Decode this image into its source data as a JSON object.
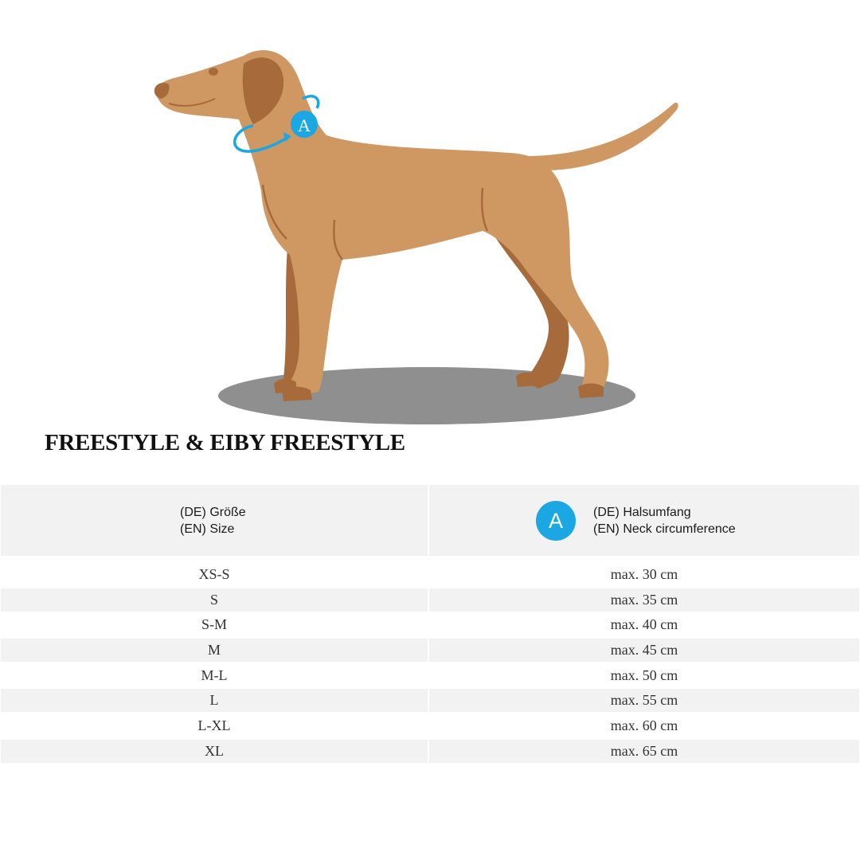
{
  "illustration": {
    "marker_letter": "A",
    "colors": {
      "dog_body": "#cf9862",
      "dog_shade": "#a76a3a",
      "ear": "#a76a3a",
      "shadow": "#8f8f8f",
      "accent": "#1aa7e3"
    }
  },
  "title": "FREESTYLE & EIBY FREESTYLE",
  "table": {
    "header": {
      "size_de": "(DE) Größe",
      "size_en": "(EN) Size",
      "badge": "A",
      "neck_de": "(DE) Halsumfang",
      "neck_en": "(EN) Neck circumference"
    },
    "rows": [
      {
        "size": "XS-S",
        "neck": "max. 30 cm"
      },
      {
        "size": "S",
        "neck": "max. 35 cm"
      },
      {
        "size": "S-M",
        "neck": "max. 40 cm"
      },
      {
        "size": "M",
        "neck": "max. 45 cm"
      },
      {
        "size": "M-L",
        "neck": "max. 50 cm"
      },
      {
        "size": "L",
        "neck": "max. 55 cm"
      },
      {
        "size": "L-XL",
        "neck": "max. 60 cm"
      },
      {
        "size": "XL",
        "neck": "max. 65 cm"
      }
    ]
  }
}
